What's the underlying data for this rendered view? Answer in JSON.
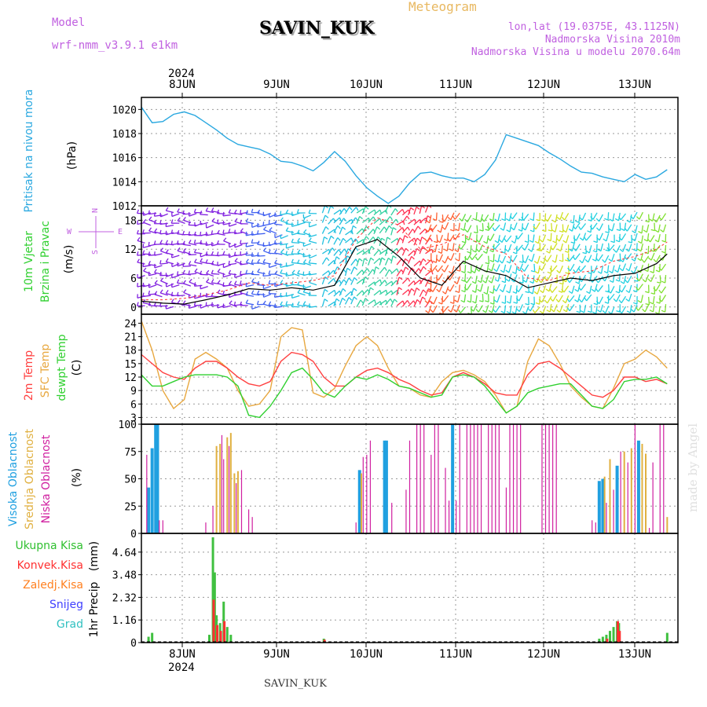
{
  "header": {
    "model_label": "Model",
    "model_name": "wrf-nmm_v3.9.1 e1km",
    "station": "SAVIN_KUK",
    "product": "Meteogram",
    "lonlat": "lon,lat (19.0375E, 43.1125N)",
    "elevation": "Nadmorska Visina 2010m",
    "model_elevation": "Nadmorska Visina u modelu 2070.64m",
    "year_top": "2024",
    "year_bottom": "2024",
    "footer_station": "SAVIN_KUK",
    "watermark": "made by Angel"
  },
  "colors": {
    "pressure": "#2aa8e0",
    "wind_speed": "#000000",
    "gust": "#ff3030",
    "temp_2m": "#ff4040",
    "temp_sfc": "#e8a840",
    "dewpoint": "#30d030",
    "cloud_high": "#20a0e0",
    "cloud_mid": "#e0b040",
    "cloud_low": "#d020a0",
    "precip_total": "#40c040",
    "precip_conv": "#ff3030",
    "precip_freezing": "#ff8020",
    "snow": "#4040ff",
    "hail": "#30c0c0",
    "title_purple": "#c060e0"
  },
  "days": [
    "8JUN",
    "9JUN",
    "10JUN",
    "11JUN",
    "12JUN",
    "13JUN"
  ],
  "chart_data": [
    {
      "type": "line",
      "ylabel": "Pritisak na nivou mora",
      "unit": "(hPa)",
      "ylim": [
        1012,
        1021
      ],
      "yticks": [
        1012,
        1014,
        1016,
        1018,
        1020
      ],
      "x_hours": [
        0,
        3,
        6,
        9,
        12,
        15,
        18,
        21,
        24,
        27,
        30,
        33,
        36,
        39,
        42,
        45,
        48,
        51,
        54,
        57,
        60,
        63,
        66,
        69,
        72,
        75,
        78,
        81,
        84,
        87,
        90,
        93,
        96,
        99,
        102,
        105,
        108,
        111,
        114,
        117,
        120,
        123,
        126,
        129,
        132,
        135,
        138,
        141,
        144,
        147
      ],
      "series": [
        {
          "values": [
            1020.2,
            1018.9,
            1019.0,
            1019.6,
            1019.8,
            1019.5,
            1018.9,
            1018.3,
            1017.6,
            1017.1,
            1016.9,
            1016.7,
            1016.3,
            1015.7,
            1015.6,
            1015.3,
            1014.9,
            1015.6,
            1016.5,
            1015.7,
            1014.5,
            1013.5,
            1012.8,
            1012.2,
            1012.8,
            1013.9,
            1014.7,
            1014.8,
            1014.5,
            1014.3,
            1014.3,
            1014.0,
            1014.6,
            1015.8,
            1017.9,
            1017.6,
            1017.3,
            1017.0,
            1016.4,
            1015.9,
            1015.3,
            1014.8,
            1014.7,
            1014.4,
            1014.2,
            1014.0,
            1014.6,
            1014.2,
            1014.4,
            1015.0
          ]
        }
      ]
    },
    {
      "type": "line",
      "ylabel": "10m Vjetar Brzina i Pravac",
      "unit": "(m/s)",
      "compass": [
        "N",
        "W",
        "E",
        "S"
      ],
      "ylim": [
        -1.5,
        21
      ],
      "yticks": [
        0,
        6,
        12,
        18
      ],
      "x_hours": [
        0,
        6,
        12,
        18,
        24,
        30,
        36,
        42,
        48,
        54,
        60,
        66,
        72,
        78,
        84,
        90,
        96,
        102,
        108,
        114,
        120,
        126,
        132,
        138,
        144,
        147
      ],
      "series": [
        {
          "values": [
            1.2,
            0.8,
            0.6,
            1.5,
            2.5,
            3.8,
            3.5,
            4.0,
            3.5,
            4.5,
            12.5,
            14.0,
            10.5,
            6.0,
            4.5,
            9.5,
            7.5,
            6.5,
            4.0,
            5.0,
            6.0,
            5.5,
            6.5,
            7.0,
            9.0,
            11.0
          ]
        },
        {
          "values": [
            1.5,
            1.5,
            1.8,
            2.5,
            3.5,
            5.0,
            4.5,
            5.0,
            5.5,
            6.5,
            14.0,
            18.5,
            17.0,
            12.0,
            13.0,
            15.0,
            12.5,
            11.0,
            6.0,
            5.5,
            7.0,
            7.5,
            9.5,
            10.5,
            12.0,
            13.5
          ]
        }
      ]
    },
    {
      "type": "line",
      "ylabel_lines": [
        "2m Temp",
        "SFC Temp",
        "dewpt Temp"
      ],
      "unit": "(C)",
      "ylim": [
        1.5,
        26
      ],
      "yticks": [
        3,
        6,
        9,
        12,
        15,
        18,
        21,
        24
      ],
      "x_hours": [
        0,
        3,
        6,
        9,
        12,
        15,
        18,
        21,
        24,
        27,
        30,
        33,
        36,
        39,
        42,
        45,
        48,
        51,
        54,
        57,
        60,
        63,
        66,
        69,
        72,
        75,
        78,
        81,
        84,
        87,
        90,
        93,
        96,
        99,
        102,
        105,
        108,
        111,
        114,
        117,
        120,
        123,
        126,
        129,
        132,
        135,
        138,
        141,
        144,
        147
      ],
      "series": [
        {
          "values": [
            17.0,
            15.0,
            13.0,
            12.0,
            11.5,
            14.0,
            15.5,
            15.5,
            14.0,
            12.0,
            10.5,
            10.0,
            11.0,
            15.5,
            17.5,
            17.0,
            15.5,
            12.0,
            10.0,
            10.0,
            12.0,
            13.5,
            14.0,
            13.0,
            11.5,
            10.5,
            9.0,
            8.0,
            8.5,
            12.0,
            13.0,
            12.0,
            10.5,
            8.5,
            8.0,
            8.0,
            12.5,
            15.0,
            15.5,
            14.0,
            12.0,
            10.0,
            8.0,
            7.5,
            9.0,
            12.0,
            12.0,
            11.0,
            11.5,
            10.5
          ]
        },
        {
          "values": [
            24.5,
            18.0,
            9.0,
            5.0,
            7.0,
            16.0,
            17.5,
            16.0,
            14.0,
            9.0,
            5.5,
            6.0,
            9.0,
            21.0,
            23.0,
            22.5,
            8.5,
            7.5,
            9.5,
            14.5,
            19.0,
            21.0,
            19.0,
            14.0,
            10.0,
            9.5,
            8.0,
            7.5,
            11.0,
            13.0,
            13.5,
            12.5,
            11.0,
            8.0,
            4.0,
            5.5,
            15.5,
            20.5,
            19.0,
            15.0,
            10.0,
            7.5,
            5.5,
            5.0,
            9.5,
            15.0,
            16.0,
            18.0,
            16.5,
            14.0
          ]
        },
        {
          "values": [
            12.5,
            10.0,
            10.0,
            11.0,
            12.0,
            12.5,
            12.5,
            12.5,
            12.0,
            10.0,
            3.5,
            3.0,
            5.5,
            9.0,
            13.0,
            14.0,
            11.5,
            8.5,
            7.5,
            10.0,
            12.0,
            11.5,
            12.5,
            11.5,
            10.0,
            9.5,
            8.5,
            7.5,
            8.0,
            12.0,
            12.5,
            12.0,
            10.0,
            7.0,
            4.0,
            5.5,
            8.5,
            9.5,
            10.0,
            10.5,
            10.5,
            8.0,
            5.5,
            5.0,
            7.0,
            11.0,
            11.5,
            11.5,
            12.0,
            10.5
          ]
        }
      ]
    },
    {
      "type": "bar",
      "ylabel_lines": [
        "Visoka Oblacnost",
        "Srednja Oblacnost",
        "Niska Oblacnost"
      ],
      "unit": "(%)",
      "ylim": [
        0,
        100
      ],
      "yticks": [
        0,
        25,
        50,
        75,
        100
      ],
      "series": [
        {
          "bars": [
            [
              2,
              42
            ],
            [
              3,
              78
            ],
            [
              4,
              100
            ],
            [
              4.5,
              100
            ],
            [
              87,
              100
            ],
            [
              68,
              85
            ],
            [
              68.5,
              85
            ],
            [
              61,
              58
            ],
            [
              128,
              48
            ],
            [
              129,
              50
            ],
            [
              133,
              62
            ],
            [
              139,
              85
            ]
          ]
        },
        {
          "bars": [
            [
              21,
              80
            ],
            [
              22,
              82
            ],
            [
              24,
              88
            ],
            [
              25,
              92
            ],
            [
              26,
              55
            ],
            [
              27,
              57
            ],
            [
              61.5,
              55
            ],
            [
              129.5,
              52
            ],
            [
              131,
              68
            ],
            [
              135,
              75
            ],
            [
              137,
              78
            ],
            [
              140,
              82
            ],
            [
              141,
              73
            ],
            [
              147,
              15
            ]
          ]
        },
        {
          "bars": [
            [
              1.5,
              72
            ],
            [
              5,
              12
            ],
            [
              6,
              12
            ],
            [
              18,
              10
            ],
            [
              20,
              25
            ],
            [
              22.5,
              90
            ],
            [
              23,
              68
            ],
            [
              24.5,
              80
            ],
            [
              26.5,
              46
            ],
            [
              28,
              58
            ],
            [
              30,
              22
            ],
            [
              31,
              15
            ],
            [
              60,
              10
            ],
            [
              62,
              70
            ],
            [
              63,
              72
            ],
            [
              64,
              85
            ],
            [
              70,
              28
            ],
            [
              74,
              40
            ],
            [
              75,
              85
            ],
            [
              77,
              100
            ],
            [
              78,
              100
            ],
            [
              79,
              100
            ],
            [
              81,
              72
            ],
            [
              82,
              100
            ],
            [
              83,
              100
            ],
            [
              85,
              60
            ],
            [
              86,
              30
            ],
            [
              88,
              30
            ],
            [
              89,
              100
            ],
            [
              91,
              100
            ],
            [
              92,
              100
            ],
            [
              93,
              100
            ],
            [
              94,
              100
            ],
            [
              95,
              100
            ],
            [
              97,
              100
            ],
            [
              98,
              100
            ],
            [
              99,
              100
            ],
            [
              100,
              100
            ],
            [
              102,
              42
            ],
            [
              103,
              100
            ],
            [
              104,
              100
            ],
            [
              105,
              100
            ],
            [
              106,
              100
            ],
            [
              112,
              100
            ],
            [
              113,
              100
            ],
            [
              114,
              100
            ],
            [
              115,
              100
            ],
            [
              116,
              100
            ],
            [
              126,
              12
            ],
            [
              127,
              10
            ],
            [
              130,
              28
            ],
            [
              132,
              40
            ],
            [
              134,
              75
            ],
            [
              136,
              65
            ],
            [
              138,
              100
            ],
            [
              142,
              5
            ],
            [
              143,
              65
            ],
            [
              145,
              100
            ],
            [
              146,
              100
            ]
          ]
        }
      ]
    },
    {
      "type": "bar",
      "ylabel": "1hr Precip",
      "unit": "(mm)",
      "ylim": [
        0,
        5.6
      ],
      "yticks": [
        0,
        1.16,
        2.32,
        3.48,
        4.64
      ],
      "legend": [
        "Ukupna Kisa",
        "Konvek.Kisa",
        "Zaledj.Kisa",
        "Snijeg",
        "Grad"
      ],
      "series": [
        {
          "name": "Ukupna Kisa",
          "bars": [
            [
              2,
              0.3
            ],
            [
              3,
              0.5
            ],
            [
              19,
              0.4
            ],
            [
              20,
              5.4
            ],
            [
              20.5,
              3.6
            ],
            [
              21,
              1.4
            ],
            [
              22,
              1.0
            ],
            [
              23,
              2.1
            ],
            [
              24,
              0.8
            ],
            [
              25,
              0.4
            ],
            [
              51,
              0.2
            ],
            [
              128,
              0.2
            ],
            [
              129,
              0.3
            ],
            [
              130,
              0.4
            ],
            [
              131,
              0.6
            ],
            [
              132,
              0.8
            ],
            [
              133,
              1.1
            ],
            [
              133.5,
              1.0
            ],
            [
              147,
              0.5
            ]
          ]
        },
        {
          "name": "Konvek.Kisa",
          "bars": [
            [
              20.2,
              2.2
            ],
            [
              21.2,
              0.9
            ],
            [
              22.2,
              0.6
            ],
            [
              23.2,
              1.1
            ],
            [
              51.2,
              0.15
            ],
            [
              130.2,
              0.2
            ],
            [
              133.2,
              1.1
            ],
            [
              133.7,
              0.6
            ]
          ]
        }
      ]
    }
  ]
}
